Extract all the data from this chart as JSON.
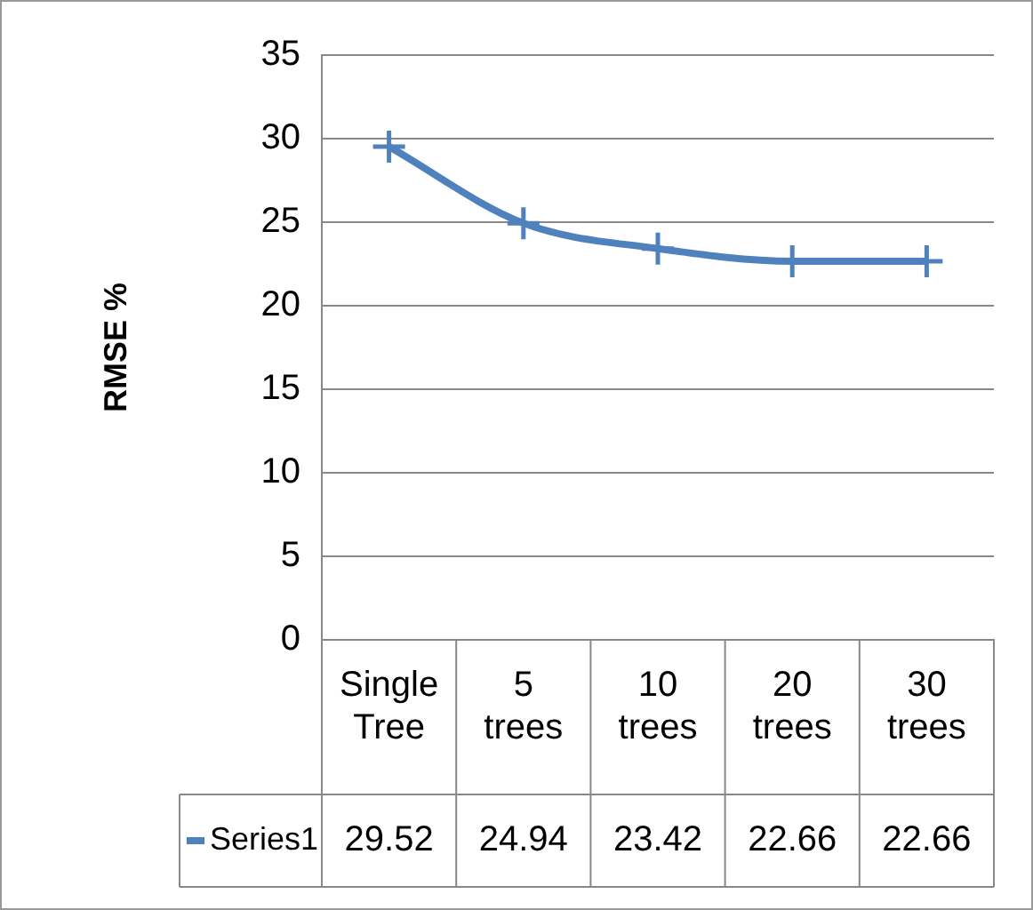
{
  "chart_data": {
    "type": "line",
    "ylabel": "RMSE %",
    "categories": [
      "Single Tree",
      "5 trees",
      "10 trees",
      "20 trees",
      "30 trees"
    ],
    "series": [
      {
        "name": "Series1",
        "color": "#4f81bd",
        "values": [
          29.52,
          24.94,
          23.42,
          22.66,
          22.66
        ]
      }
    ],
    "ylim": [
      0,
      35
    ],
    "yticks": [
      0,
      5,
      10,
      15,
      20,
      25,
      30,
      35
    ],
    "grid": "y",
    "legend": "bottom",
    "marker": "cross",
    "line_style": "solid",
    "data_labels": true
  }
}
